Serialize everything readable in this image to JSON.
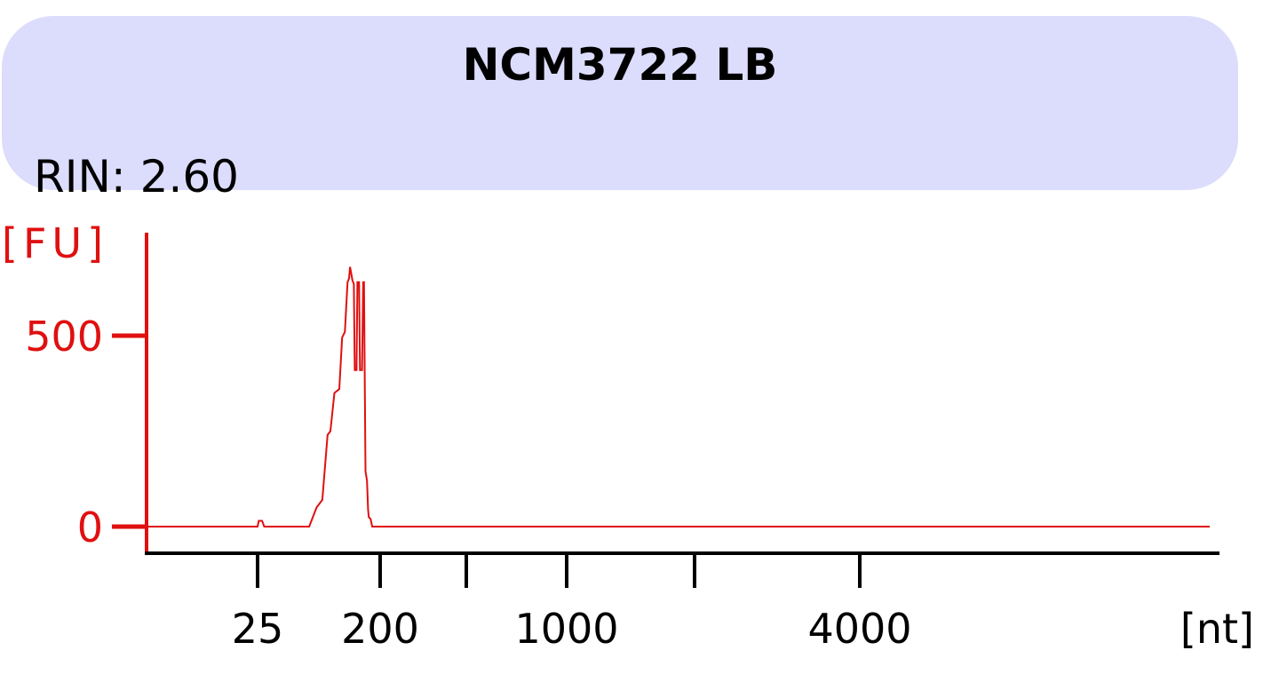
{
  "header": {
    "title": "NCM3722 LB",
    "rin_text": "RIN: 2.60",
    "panel_color": "#dcdcfc"
  },
  "colors": {
    "y_axis": "#e01010",
    "x_axis": "#000000",
    "trace": "#e01010"
  },
  "chart_data": {
    "type": "line",
    "title": "NCM3722 LB",
    "subtitle": "RIN: 2.60",
    "ylabel": "[FU]",
    "xlabel": "[nt]",
    "x_scale": "nonlinear (electropherogram ladder)",
    "ylim": [
      -70,
      1530
    ],
    "y_ticks": [
      0,
      500
    ],
    "x_ticks": [
      {
        "value": 25,
        "label": "25"
      },
      {
        "value": 200,
        "label": "200"
      },
      {
        "value": 500,
        "label": ""
      },
      {
        "value": 1000,
        "label": "1000"
      },
      {
        "value": 2000,
        "label": ""
      },
      {
        "value": 4000,
        "label": "4000"
      }
    ],
    "legend": "none",
    "grid": false,
    "series": [
      {
        "x": [
          10,
          25,
          25.5,
          27,
          28,
          32,
          60,
          68,
          75,
          82,
          86,
          92,
          100,
          105,
          110,
          115,
          118,
          120,
          125,
          128,
          130,
          132,
          134,
          136,
          140,
          142,
          147,
          150,
          152,
          156,
          160,
          163,
          165,
          170,
          175,
          180,
          185,
          200,
          500,
          1000,
          2000,
          4000,
          8000
        ],
        "y": [
          0,
          0,
          15,
          15,
          0,
          0,
          0,
          50,
          70,
          240,
          250,
          350,
          360,
          495,
          510,
          640,
          650,
          680,
          645,
          635,
          410,
          410,
          410,
          640,
          640,
          410,
          410,
          640,
          640,
          145,
          120,
          45,
          25,
          20,
          0,
          0,
          0,
          0,
          0,
          0,
          0,
          0,
          0
        ]
      }
    ]
  }
}
